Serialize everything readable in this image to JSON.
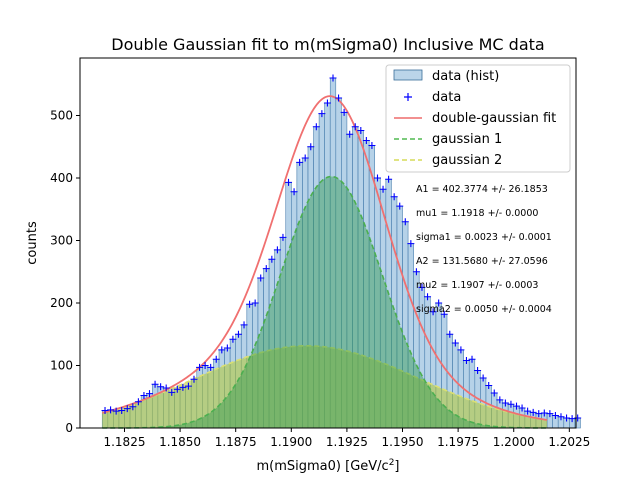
{
  "chart_data": {
    "type": "bar",
    "title": "Double Gaussian fit to m(mSigma0) Inclusive MC data",
    "xlabel": "m(mSigma0) [GeV/c",
    "xlabel_sup": "2",
    "xlabel_suffix": "]",
    "ylabel": "counts",
    "xlim": [
      1.1805,
      1.2028
    ],
    "ylim": [
      0,
      592
    ],
    "x_ticks": [
      1.1825,
      1.185,
      1.1875,
      1.19,
      1.1925,
      1.195,
      1.1975,
      1.2,
      1.2025
    ],
    "x_tick_labels": [
      "1.1825",
      "1.1850",
      "1.1875",
      "1.1900",
      "1.1925",
      "1.1950",
      "1.1975",
      "1.2000",
      "1.2025"
    ],
    "y_ticks": [
      0,
      100,
      200,
      300,
      400,
      500
    ],
    "y_tick_labels": [
      "0",
      "100",
      "200",
      "300",
      "400",
      "500"
    ],
    "grid": false,
    "legend_position": "top-right",
    "bins": {
      "start": 1.1815,
      "width": 0.00025,
      "counts": [
        28,
        29,
        27,
        28,
        31,
        34,
        42,
        52,
        55,
        70,
        66,
        64,
        57,
        62,
        65,
        67,
        78,
        97,
        100,
        97,
        110,
        125,
        128,
        142,
        150,
        165,
        198,
        200,
        240,
        255,
        270,
        285,
        305,
        393,
        378,
        425,
        432,
        450,
        482,
        503,
        520,
        560,
        528,
        505,
        470,
        482,
        476,
        460,
        452,
        400,
        382,
        398,
        370,
        355,
        330,
        295,
        250,
        225,
        210,
        186,
        200,
        182,
        150,
        136,
        125,
        108,
        110,
        92,
        80,
        68,
        56,
        45,
        40,
        38,
        35,
        32,
        27,
        25,
        23,
        24,
        23,
        20,
        18,
        16,
        15,
        16
      ]
    },
    "points_marker": "+",
    "fit": {
      "A1": 402.3774,
      "mu1": 1.1918,
      "sigma1": 0.0023,
      "A2": 131.568,
      "mu2": 1.1907,
      "sigma2": 0.005
    },
    "fit_x_range": [
      1.1815,
      1.2015
    ],
    "series": [
      {
        "name": "data (hist)",
        "color": "#9ec3e0"
      },
      {
        "name": "data",
        "color": "#0000ff"
      },
      {
        "name": "double-gaussian fit",
        "color": "#f08080"
      },
      {
        "name": "gaussian 1",
        "color": "#4caf50"
      },
      {
        "name": "gaussian 2",
        "color": "#c8d048"
      }
    ],
    "annotations": [
      "A1 = 402.3774 +/- 26.1853",
      "mu1 = 1.1918 +/- 0.0000",
      "sigma1 = 0.0023 +/- 0.0001",
      "A2 = 131.5680 +/- 27.0596",
      "mu2 = 1.1907 +/- 0.0003",
      "sigma2 = 0.0050 +/- 0.0004"
    ]
  }
}
